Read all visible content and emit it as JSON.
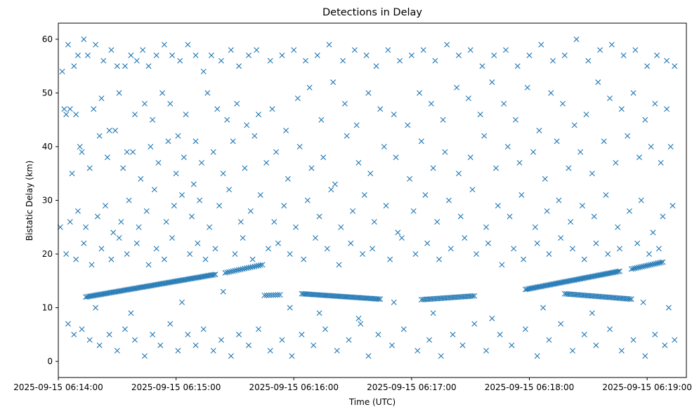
{
  "chart_data": {
    "type": "scatter",
    "title": "Detections in Delay",
    "xlabel": "Time (UTC)",
    "ylabel": "Bistatic Delay (km)",
    "marker": "x",
    "color": "#1f77b4",
    "x_unit": "seconds after 2025-09-15 06:14:00",
    "xlim": [
      0,
      320
    ],
    "ylim": [
      -3,
      63
    ],
    "x_ticks": [
      {
        "value": 0,
        "label": "2025-09-15 06:14:00"
      },
      {
        "value": 60,
        "label": "2025-09-15 06:15:00"
      },
      {
        "value": 120,
        "label": "2025-09-15 06:16:00"
      },
      {
        "value": 180,
        "label": "2025-09-15 06:17:00"
      },
      {
        "value": 240,
        "label": "2025-09-15 06:18:00"
      },
      {
        "value": 300,
        "label": "2025-09-15 06:19:00"
      }
    ],
    "y_ticks": [
      {
        "value": 0,
        "label": "0"
      },
      {
        "value": 10,
        "label": "10"
      },
      {
        "value": 20,
        "label": "20"
      },
      {
        "value": 30,
        "label": "30"
      },
      {
        "value": 40,
        "label": "40"
      },
      {
        "value": 50,
        "label": "50"
      },
      {
        "value": 60,
        "label": "60"
      }
    ],
    "tracks": [
      {
        "name": "track-1",
        "x_start": 14,
        "x_end": 80,
        "y_start": 12.0,
        "y_end": 16.2,
        "step": 0.8
      },
      {
        "name": "track-2",
        "x_start": 85,
        "x_end": 104,
        "y_start": 16.5,
        "y_end": 18.0,
        "step": 1.0
      },
      {
        "name": "track-3",
        "x_start": 105,
        "x_end": 113,
        "y_start": 12.3,
        "y_end": 12.4,
        "step": 1.2
      },
      {
        "name": "track-4",
        "x_start": 124,
        "x_end": 164,
        "y_start": 12.6,
        "y_end": 11.6,
        "step": 0.8
      },
      {
        "name": "track-5",
        "x_start": 185,
        "x_end": 212,
        "y_start": 11.5,
        "y_end": 12.2,
        "step": 0.9
      },
      {
        "name": "track-6",
        "x_start": 238,
        "x_end": 286,
        "y_start": 13.4,
        "y_end": 16.8,
        "step": 0.8
      },
      {
        "name": "track-7",
        "x_start": 258,
        "x_end": 292,
        "y_start": 12.6,
        "y_end": 11.6,
        "step": 0.9
      },
      {
        "name": "track-8",
        "x_start": 292,
        "x_end": 308,
        "y_start": 17.2,
        "y_end": 18.5,
        "step": 0.9
      }
    ],
    "points": [
      [
        2,
        54
      ],
      [
        5,
        59
      ],
      [
        8,
        55
      ],
      [
        10,
        57
      ],
      [
        13,
        60
      ],
      [
        15,
        57
      ],
      [
        19,
        59
      ],
      [
        23,
        56
      ],
      [
        27,
        58
      ],
      [
        30,
        55
      ],
      [
        34,
        55
      ],
      [
        37,
        57
      ],
      [
        40,
        56
      ],
      [
        43,
        58
      ],
      [
        46,
        55
      ],
      [
        50,
        57
      ],
      [
        54,
        59
      ],
      [
        58,
        57
      ],
      [
        62,
        56
      ],
      [
        66,
        59
      ],
      [
        70,
        57
      ],
      [
        74,
        54
      ],
      [
        78,
        57
      ],
      [
        83,
        56
      ],
      [
        88,
        58
      ],
      [
        92,
        55
      ],
      [
        97,
        57
      ],
      [
        101,
        58
      ],
      [
        108,
        56
      ],
      [
        114,
        57
      ],
      [
        120,
        58
      ],
      [
        126,
        56
      ],
      [
        132,
        57
      ],
      [
        138,
        59
      ],
      [
        145,
        56
      ],
      [
        151,
        58
      ],
      [
        157,
        57
      ],
      [
        162,
        55
      ],
      [
        168,
        58
      ],
      [
        174,
        56
      ],
      [
        180,
        57
      ],
      [
        186,
        58
      ],
      [
        192,
        56
      ],
      [
        198,
        59
      ],
      [
        204,
        57
      ],
      [
        210,
        58
      ],
      [
        216,
        55
      ],
      [
        222,
        57
      ],
      [
        228,
        58
      ],
      [
        234,
        55
      ],
      [
        240,
        57
      ],
      [
        246,
        59
      ],
      [
        252,
        56
      ],
      [
        258,
        57
      ],
      [
        264,
        60
      ],
      [
        270,
        56
      ],
      [
        276,
        58
      ],
      [
        282,
        59
      ],
      [
        288,
        57
      ],
      [
        294,
        58
      ],
      [
        300,
        55
      ],
      [
        305,
        57
      ],
      [
        310,
        56
      ],
      [
        314,
        55
      ],
      [
        3,
        47
      ],
      [
        4,
        46
      ],
      [
        6,
        47
      ],
      [
        9,
        46
      ],
      [
        11,
        40
      ],
      [
        18,
        47
      ],
      [
        22,
        49
      ],
      [
        26,
        43
      ],
      [
        31,
        50
      ],
      [
        35,
        39
      ],
      [
        39,
        46
      ],
      [
        44,
        48
      ],
      [
        48,
        45
      ],
      [
        53,
        50
      ],
      [
        57,
        48
      ],
      [
        61,
        42
      ],
      [
        65,
        46
      ],
      [
        70,
        41
      ],
      [
        76,
        50
      ],
      [
        81,
        47
      ],
      [
        86,
        45
      ],
      [
        91,
        48
      ],
      [
        96,
        44
      ],
      [
        102,
        46
      ],
      [
        109,
        47
      ],
      [
        116,
        43
      ],
      [
        122,
        49
      ],
      [
        128,
        51
      ],
      [
        134,
        45
      ],
      [
        140,
        52
      ],
      [
        146,
        48
      ],
      [
        152,
        44
      ],
      [
        158,
        50
      ],
      [
        164,
        47
      ],
      [
        171,
        46
      ],
      [
        178,
        44
      ],
      [
        184,
        50
      ],
      [
        190,
        48
      ],
      [
        196,
        45
      ],
      [
        203,
        51
      ],
      [
        209,
        49
      ],
      [
        215,
        46
      ],
      [
        221,
        52
      ],
      [
        227,
        48
      ],
      [
        233,
        45
      ],
      [
        239,
        51
      ],
      [
        245,
        43
      ],
      [
        251,
        50
      ],
      [
        257,
        48
      ],
      [
        263,
        44
      ],
      [
        269,
        46
      ],
      [
        275,
        52
      ],
      [
        281,
        49
      ],
      [
        287,
        47
      ],
      [
        293,
        50
      ],
      [
        299,
        45
      ],
      [
        304,
        48
      ],
      [
        310,
        47
      ],
      [
        7,
        35
      ],
      [
        12,
        39
      ],
      [
        16,
        36
      ],
      [
        21,
        42
      ],
      [
        25,
        38
      ],
      [
        29,
        43
      ],
      [
        33,
        36
      ],
      [
        38,
        39
      ],
      [
        42,
        34
      ],
      [
        47,
        40
      ],
      [
        51,
        37
      ],
      [
        56,
        41
      ],
      [
        60,
        35
      ],
      [
        64,
        38
      ],
      [
        69,
        33
      ],
      [
        73,
        37
      ],
      [
        79,
        39
      ],
      [
        84,
        35
      ],
      [
        89,
        41
      ],
      [
        95,
        36
      ],
      [
        100,
        42
      ],
      [
        106,
        37
      ],
      [
        111,
        39
      ],
      [
        117,
        34
      ],
      [
        123,
        40
      ],
      [
        129,
        36
      ],
      [
        135,
        38
      ],
      [
        141,
        33
      ],
      [
        147,
        42
      ],
      [
        153,
        37
      ],
      [
        159,
        35
      ],
      [
        166,
        40
      ],
      [
        172,
        38
      ],
      [
        179,
        34
      ],
      [
        185,
        41
      ],
      [
        191,
        36
      ],
      [
        197,
        39
      ],
      [
        204,
        35
      ],
      [
        210,
        38
      ],
      [
        217,
        42
      ],
      [
        223,
        36
      ],
      [
        229,
        40
      ],
      [
        235,
        37
      ],
      [
        242,
        39
      ],
      [
        248,
        34
      ],
      [
        254,
        41
      ],
      [
        260,
        36
      ],
      [
        266,
        39
      ],
      [
        272,
        35
      ],
      [
        278,
        41
      ],
      [
        284,
        37
      ],
      [
        290,
        42
      ],
      [
        296,
        38
      ],
      [
        302,
        40
      ],
      [
        307,
        37
      ],
      [
        312,
        40
      ],
      [
        1,
        25
      ],
      [
        6,
        26
      ],
      [
        10,
        28
      ],
      [
        14,
        25
      ],
      [
        20,
        27
      ],
      [
        24,
        29
      ],
      [
        28,
        24
      ],
      [
        32,
        26
      ],
      [
        36,
        30
      ],
      [
        41,
        25
      ],
      [
        45,
        28
      ],
      [
        49,
        32
      ],
      [
        55,
        26
      ],
      [
        59,
        29
      ],
      [
        63,
        31
      ],
      [
        68,
        27
      ],
      [
        72,
        30
      ],
      [
        77,
        25
      ],
      [
        82,
        29
      ],
      [
        87,
        32
      ],
      [
        93,
        26
      ],
      [
        98,
        28
      ],
      [
        103,
        31
      ],
      [
        110,
        26
      ],
      [
        115,
        29
      ],
      [
        121,
        25
      ],
      [
        127,
        30
      ],
      [
        133,
        27
      ],
      [
        139,
        32
      ],
      [
        144,
        25
      ],
      [
        150,
        28
      ],
      [
        156,
        31
      ],
      [
        161,
        26
      ],
      [
        167,
        29
      ],
      [
        173,
        24
      ],
      [
        181,
        28
      ],
      [
        187,
        31
      ],
      [
        193,
        26
      ],
      [
        199,
        30
      ],
      [
        205,
        27
      ],
      [
        211,
        32
      ],
      [
        218,
        25
      ],
      [
        224,
        29
      ],
      [
        230,
        27
      ],
      [
        236,
        31
      ],
      [
        243,
        25
      ],
      [
        249,
        28
      ],
      [
        255,
        30
      ],
      [
        261,
        26
      ],
      [
        267,
        29
      ],
      [
        273,
        27
      ],
      [
        279,
        31
      ],
      [
        285,
        25
      ],
      [
        291,
        28
      ],
      [
        297,
        30
      ],
      [
        303,
        24
      ],
      [
        308,
        27
      ],
      [
        313,
        29
      ],
      [
        4,
        20
      ],
      [
        9,
        19
      ],
      [
        13,
        22
      ],
      [
        17,
        18
      ],
      [
        22,
        21
      ],
      [
        27,
        19
      ],
      [
        31,
        23
      ],
      [
        35,
        20
      ],
      [
        40,
        22
      ],
      [
        46,
        18
      ],
      [
        50,
        21
      ],
      [
        54,
        19
      ],
      [
        58,
        23
      ],
      [
        67,
        20
      ],
      [
        71,
        22
      ],
      [
        75,
        19
      ],
      [
        80,
        21
      ],
      [
        90,
        20
      ],
      [
        94,
        23
      ],
      [
        99,
        19
      ],
      [
        107,
        21
      ],
      [
        112,
        22
      ],
      [
        118,
        20
      ],
      [
        125,
        19
      ],
      [
        131,
        23
      ],
      [
        137,
        21
      ],
      [
        143,
        18
      ],
      [
        149,
        22
      ],
      [
        155,
        20
      ],
      [
        160,
        21
      ],
      [
        169,
        19
      ],
      [
        175,
        23
      ],
      [
        182,
        20
      ],
      [
        188,
        22
      ],
      [
        194,
        19
      ],
      [
        200,
        21
      ],
      [
        207,
        23
      ],
      [
        213,
        20
      ],
      [
        219,
        22
      ],
      [
        226,
        18
      ],
      [
        232,
        21
      ],
      [
        237,
        19
      ],
      [
        244,
        22
      ],
      [
        250,
        20
      ],
      [
        256,
        23
      ],
      [
        262,
        21
      ],
      [
        268,
        19
      ],
      [
        274,
        22
      ],
      [
        280,
        20
      ],
      [
        286,
        21
      ],
      [
        295,
        22
      ],
      [
        301,
        20
      ],
      [
        306,
        21
      ],
      [
        5,
        7
      ],
      [
        8,
        5
      ],
      [
        12,
        6
      ],
      [
        16,
        4
      ],
      [
        21,
        3
      ],
      [
        26,
        5
      ],
      [
        30,
        2
      ],
      [
        34,
        6
      ],
      [
        39,
        4
      ],
      [
        44,
        1
      ],
      [
        48,
        5
      ],
      [
        52,
        3
      ],
      [
        57,
        7
      ],
      [
        61,
        2
      ],
      [
        66,
        5
      ],
      [
        70,
        3
      ],
      [
        74,
        6
      ],
      [
        79,
        2
      ],
      [
        83,
        4
      ],
      [
        88,
        1
      ],
      [
        92,
        5
      ],
      [
        97,
        3
      ],
      [
        102,
        6
      ],
      [
        108,
        2
      ],
      [
        114,
        4
      ],
      [
        119,
        1
      ],
      [
        124,
        5
      ],
      [
        130,
        3
      ],
      [
        136,
        6
      ],
      [
        142,
        2
      ],
      [
        148,
        4
      ],
      [
        154,
        7
      ],
      [
        158,
        1
      ],
      [
        163,
        5
      ],
      [
        170,
        3
      ],
      [
        176,
        6
      ],
      [
        183,
        2
      ],
      [
        189,
        4
      ],
      [
        195,
        1
      ],
      [
        201,
        5
      ],
      [
        206,
        3
      ],
      [
        212,
        7
      ],
      [
        218,
        2
      ],
      [
        225,
        5
      ],
      [
        231,
        3
      ],
      [
        238,
        6
      ],
      [
        244,
        1
      ],
      [
        250,
        4
      ],
      [
        256,
        7
      ],
      [
        262,
        2
      ],
      [
        268,
        5
      ],
      [
        274,
        3
      ],
      [
        281,
        6
      ],
      [
        287,
        2
      ],
      [
        293,
        4
      ],
      [
        299,
        1
      ],
      [
        304,
        5
      ],
      [
        309,
        3
      ],
      [
        314,
        4
      ],
      [
        19,
        10
      ],
      [
        37,
        9
      ],
      [
        63,
        11
      ],
      [
        84,
        13
      ],
      [
        118,
        10
      ],
      [
        133,
        9
      ],
      [
        153,
        8
      ],
      [
        171,
        11
      ],
      [
        191,
        9
      ],
      [
        221,
        8
      ],
      [
        247,
        10
      ],
      [
        272,
        9
      ],
      [
        298,
        11
      ],
      [
        311,
        10
      ]
    ]
  }
}
